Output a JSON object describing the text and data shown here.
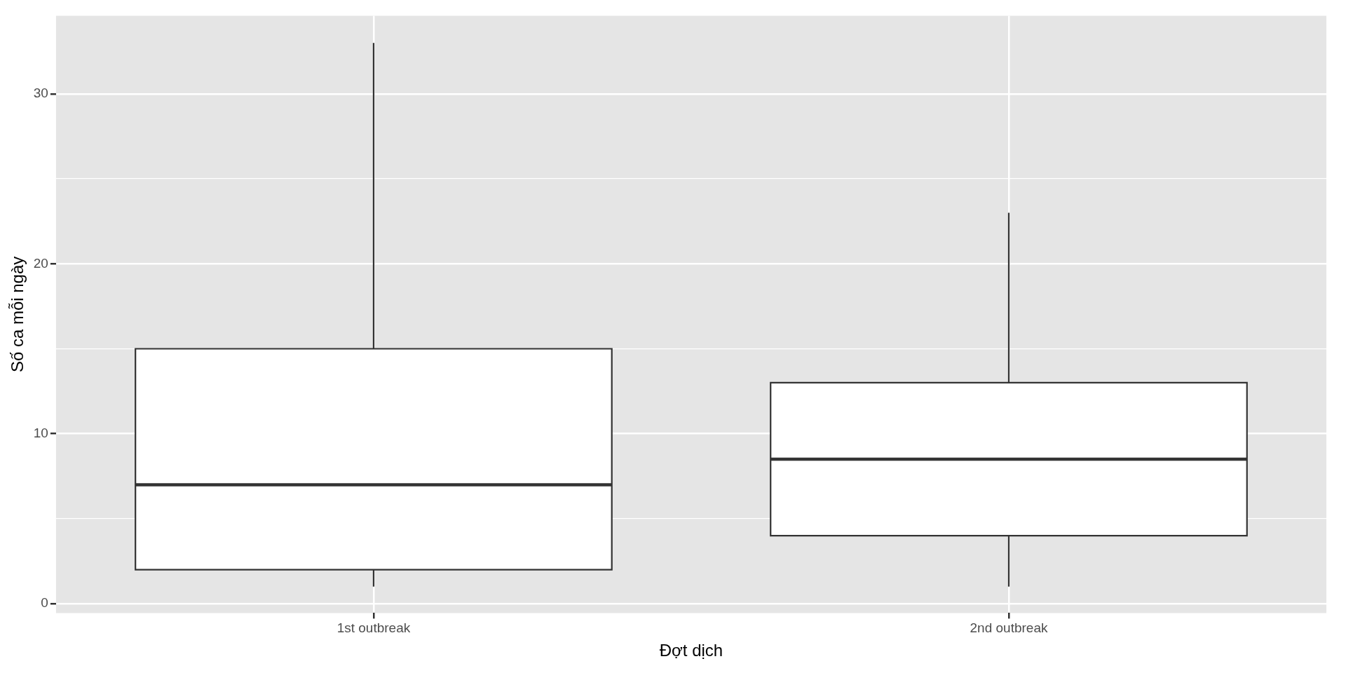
{
  "chart_data": {
    "type": "box",
    "xlabel": "Đợt dịch",
    "ylabel": "Số ca mỗi ngày",
    "categories": [
      "1st outbreak",
      "2nd outbreak"
    ],
    "boxes": [
      {
        "low": 1,
        "q1": 2,
        "median": 7,
        "q3": 15,
        "high": 33
      },
      {
        "low": 1,
        "q1": 4,
        "median": 8.5,
        "q3": 13,
        "high": 23
      }
    ],
    "color": "#ffffff",
    "ylim": [
      -0.55,
      34.6
    ],
    "yticks": [
      0,
      {
        "value": 5,
        "label": null
      },
      10,
      {
        "value": 15,
        "label": null
      },
      20,
      {
        "value": 25,
        "label": null
      },
      30
    ],
    "grid": true
  }
}
